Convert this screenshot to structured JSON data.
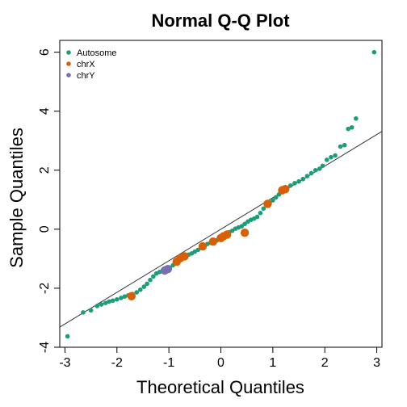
{
  "chart_data": {
    "type": "scatter",
    "title": "Normal Q-Q Plot",
    "xlabel": "Theoretical Quantiles",
    "ylabel": "Sample Quantiles",
    "xlim": [
      -3.1,
      3.1
    ],
    "ylim": [
      -4,
      6.4
    ],
    "x_ticks": [
      -3,
      -2,
      -1,
      0,
      1,
      2,
      3
    ],
    "y_ticks": [
      -4,
      -2,
      0,
      2,
      4,
      6
    ],
    "grid": false,
    "legend_position": "top-left",
    "reference_line": {
      "slope": 1.07,
      "intercept": 0.0
    },
    "series": [
      {
        "name": "Autosome",
        "color": "#1b9e77",
        "points": [
          [
            -2.95,
            -3.63
          ],
          [
            -2.65,
            -2.82
          ],
          [
            -2.5,
            -2.75
          ],
          [
            -2.38,
            -2.6
          ],
          [
            -2.3,
            -2.55
          ],
          [
            -2.22,
            -2.5
          ],
          [
            -2.15,
            -2.45
          ],
          [
            -2.08,
            -2.42
          ],
          [
            -2.0,
            -2.38
          ],
          [
            -1.92,
            -2.33
          ],
          [
            -1.85,
            -2.28
          ],
          [
            -1.78,
            -2.24
          ],
          [
            -1.7,
            -2.2
          ],
          [
            -1.62,
            -2.14
          ],
          [
            -1.55,
            -2.05
          ],
          [
            -1.48,
            -1.95
          ],
          [
            -1.42,
            -1.85
          ],
          [
            -1.36,
            -1.72
          ],
          [
            -1.3,
            -1.6
          ],
          [
            -1.24,
            -1.5
          ],
          [
            -1.18,
            -1.45
          ],
          [
            -1.12,
            -1.42
          ],
          [
            -1.05,
            -1.38
          ],
          [
            -0.98,
            -1.3
          ],
          [
            -0.92,
            -1.22
          ],
          [
            -0.86,
            -1.12
          ],
          [
            -0.8,
            -1.03
          ],
          [
            -0.74,
            -0.96
          ],
          [
            -0.68,
            -0.9
          ],
          [
            -0.62,
            -0.86
          ],
          [
            -0.56,
            -0.82
          ],
          [
            -0.5,
            -0.76
          ],
          [
            -0.44,
            -0.7
          ],
          [
            -0.38,
            -0.63
          ],
          [
            -0.32,
            -0.56
          ],
          [
            -0.26,
            -0.5
          ],
          [
            -0.2,
            -0.46
          ],
          [
            -0.14,
            -0.43
          ],
          [
            -0.08,
            -0.38
          ],
          [
            -0.02,
            -0.32
          ],
          [
            0.04,
            -0.26
          ],
          [
            0.1,
            -0.18
          ],
          [
            0.16,
            -0.1
          ],
          [
            0.22,
            -0.05
          ],
          [
            0.28,
            0.02
          ],
          [
            0.34,
            0.06
          ],
          [
            0.4,
            0.1
          ],
          [
            0.46,
            0.18
          ],
          [
            0.52,
            0.26
          ],
          [
            0.58,
            0.32
          ],
          [
            0.64,
            0.36
          ],
          [
            0.7,
            0.42
          ],
          [
            0.76,
            0.55
          ],
          [
            0.82,
            0.7
          ],
          [
            0.88,
            0.82
          ],
          [
            0.94,
            0.9
          ],
          [
            1.0,
            0.98
          ],
          [
            1.06,
            1.08
          ],
          [
            1.12,
            1.18
          ],
          [
            1.18,
            1.28
          ],
          [
            1.26,
            1.38
          ],
          [
            1.34,
            1.48
          ],
          [
            1.42,
            1.56
          ],
          [
            1.5,
            1.62
          ],
          [
            1.58,
            1.7
          ],
          [
            1.66,
            1.8
          ],
          [
            1.74,
            1.9
          ],
          [
            1.82,
            2.0
          ],
          [
            1.9,
            2.05
          ],
          [
            1.96,
            2.15
          ],
          [
            2.04,
            2.35
          ],
          [
            2.12,
            2.44
          ],
          [
            2.2,
            2.5
          ],
          [
            2.3,
            2.8
          ],
          [
            2.38,
            2.85
          ],
          [
            2.45,
            3.4
          ],
          [
            2.52,
            3.45
          ],
          [
            2.6,
            3.75
          ],
          [
            2.95,
            6.0
          ]
        ]
      },
      {
        "name": "chrX",
        "color": "#d95f02",
        "points": [
          [
            -1.72,
            -2.27
          ],
          [
            -0.85,
            -1.1
          ],
          [
            -0.78,
            -0.98
          ],
          [
            -0.7,
            -0.92
          ],
          [
            -0.35,
            -0.58
          ],
          [
            -0.15,
            -0.42
          ],
          [
            0.0,
            -0.3
          ],
          [
            0.05,
            -0.24
          ],
          [
            0.12,
            -0.18
          ],
          [
            0.46,
            -0.12
          ],
          [
            0.9,
            0.86
          ],
          [
            1.18,
            1.32
          ],
          [
            1.24,
            1.36
          ]
        ]
      },
      {
        "name": "chrY",
        "color": "#7570b3",
        "points": [
          [
            -1.08,
            -1.4
          ],
          [
            -1.02,
            -1.35
          ]
        ]
      }
    ]
  }
}
